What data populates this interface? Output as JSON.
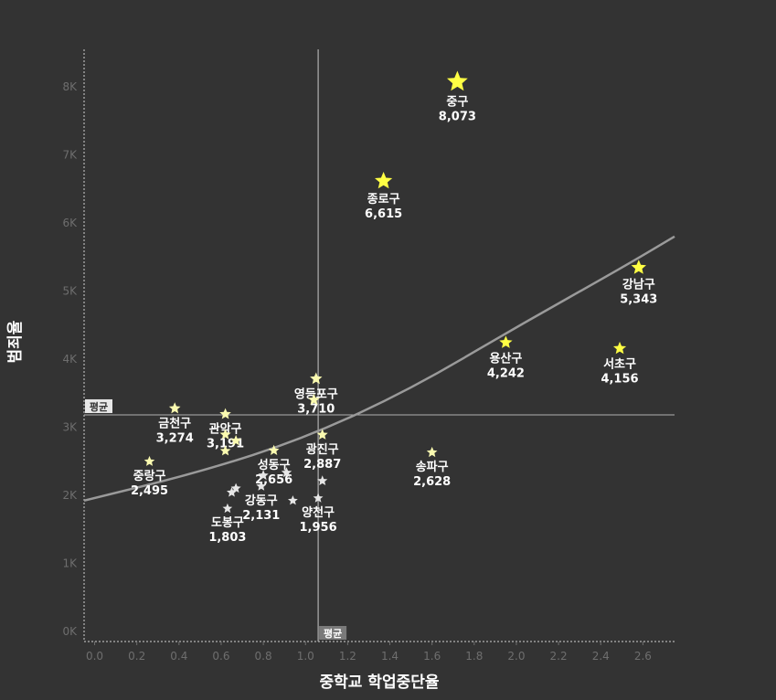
{
  "chart_data": {
    "type": "scatter",
    "xlabel": "중학교 학업중단율",
    "ylabel": "범죄율",
    "xlim": [
      -0.05,
      2.75
    ],
    "ylim": [
      -150,
      8550
    ],
    "x_ticks": [
      0.0,
      0.2,
      0.4,
      0.6,
      0.8,
      1.0,
      1.2,
      1.4,
      1.6,
      1.8,
      2.0,
      2.2,
      2.4,
      2.6
    ],
    "x_tick_labels": [
      "0.0",
      "0.2",
      "0.4",
      "0.6",
      "0.8",
      "1.0",
      "1.2",
      "1.4",
      "1.6",
      "1.8",
      "2.0",
      "2.2",
      "2.4",
      "2.6"
    ],
    "y_ticks": [
      0,
      1000,
      2000,
      3000,
      4000,
      5000,
      6000,
      7000,
      8000
    ],
    "y_tick_labels": [
      "0K",
      "1K",
      "2K",
      "3K",
      "4K",
      "5K",
      "6K",
      "7K",
      "8K"
    ],
    "average": {
      "x": 1.06,
      "y": 3180,
      "x_label": "평균",
      "y_label": "평균"
    },
    "trend": {
      "type": "exponential",
      "points": [
        [
          -0.05,
          1920
        ],
        [
          0.5,
          2340
        ],
        [
          1.0,
          2840
        ],
        [
          1.5,
          3560
        ],
        [
          2.0,
          4470
        ],
        [
          2.5,
          5340
        ],
        [
          2.75,
          5800
        ]
      ]
    },
    "colors": {
      "background": "#333333",
      "star_high": "#ffff44",
      "star_mid": "#fafab0",
      "star_low": "#e6e6e6",
      "trend": "#9a9a9a",
      "axis": "#d0d0d0",
      "tick": "#6e6e6e"
    },
    "points": [
      {
        "name": "중구",
        "x": 1.72,
        "y": 8073,
        "value": "8,073"
      },
      {
        "name": "종로구",
        "x": 1.37,
        "y": 6615,
        "value": "6,615"
      },
      {
        "name": "강남구",
        "x": 2.58,
        "y": 5343,
        "value": "5,343"
      },
      {
        "name": "용산구",
        "x": 1.95,
        "y": 4242,
        "value": "4,242"
      },
      {
        "name": "서초구",
        "x": 2.49,
        "y": 4156,
        "value": "4,156"
      },
      {
        "name": "영등포구",
        "x": 1.05,
        "y": 3710,
        "value": "3,710"
      },
      {
        "name": "금천구",
        "x": 0.38,
        "y": 3274,
        "value": "3,274"
      },
      {
        "name": "관악구",
        "x": 0.62,
        "y": 3191,
        "value": "3,191"
      },
      {
        "name": "광진구",
        "x": 1.08,
        "y": 2887,
        "value": "2,887"
      },
      {
        "name": "성동구",
        "x": 0.85,
        "y": 2656,
        "value": "2,656"
      },
      {
        "name": "송파구",
        "x": 1.6,
        "y": 2628,
        "value": "2,628"
      },
      {
        "name": "중랑구",
        "x": 0.26,
        "y": 2495,
        "value": "2,495"
      },
      {
        "name": "강동구",
        "x": 0.79,
        "y": 2131,
        "value": "2,131"
      },
      {
        "name": "양천구",
        "x": 1.06,
        "y": 1956,
        "value": "1,956"
      },
      {
        "name": "도봉구",
        "x": 0.63,
        "y": 1803,
        "value": "1,803"
      },
      {
        "name": "",
        "x": 1.04,
        "y": 3400,
        "value": ""
      },
      {
        "name": "",
        "x": 0.62,
        "y": 2890,
        "value": ""
      },
      {
        "name": "",
        "x": 0.67,
        "y": 2800,
        "value": ""
      },
      {
        "name": "",
        "x": 0.62,
        "y": 2650,
        "value": ""
      },
      {
        "name": "",
        "x": 0.91,
        "y": 2330,
        "value": ""
      },
      {
        "name": "",
        "x": 0.8,
        "y": 2290,
        "value": ""
      },
      {
        "name": "",
        "x": 1.08,
        "y": 2210,
        "value": ""
      },
      {
        "name": "",
        "x": 0.67,
        "y": 2100,
        "value": ""
      },
      {
        "name": "",
        "x": 0.65,
        "y": 2040,
        "value": ""
      },
      {
        "name": "",
        "x": 0.94,
        "y": 1920,
        "value": ""
      }
    ]
  }
}
